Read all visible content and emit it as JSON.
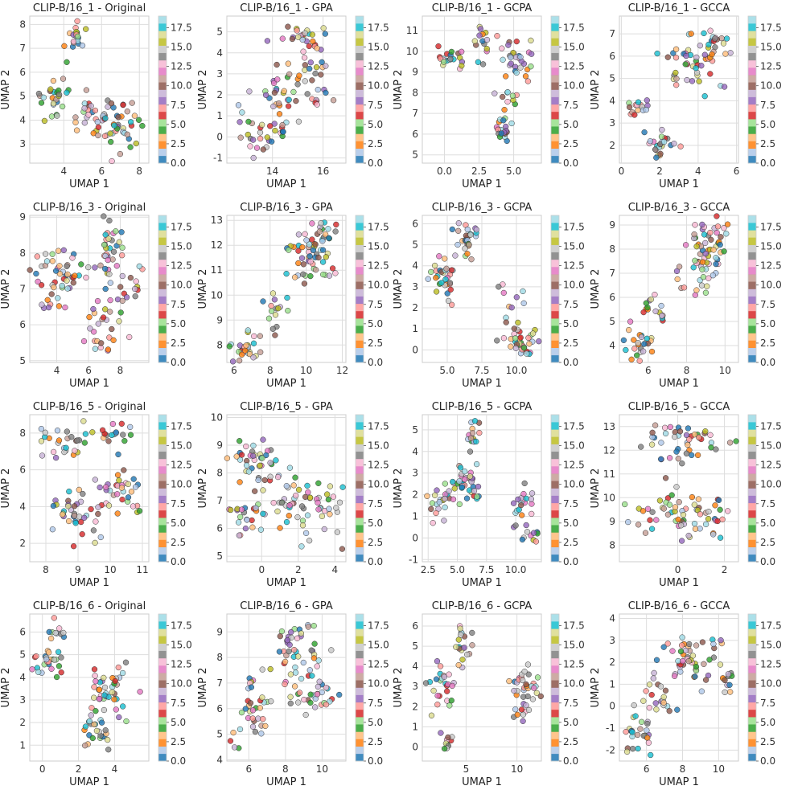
{
  "figure": {
    "colormap_name": "tab20",
    "colormap": [
      "#1f77b4",
      "#aec7e8",
      "#ff7f0e",
      "#ffbb78",
      "#2ca02c",
      "#98df8a",
      "#d62728",
      "#ff9896",
      "#9467bd",
      "#c5b0d5",
      "#8c564b",
      "#c49c94",
      "#e377c2",
      "#f7b6d2",
      "#7f7f7f",
      "#c7c7c7",
      "#bcbd22",
      "#dbdb8d",
      "#17becf",
      "#9edae5"
    ],
    "colorbar_ticks": [
      "0.0",
      "2.5",
      "5.0",
      "7.5",
      "10.0",
      "12.5",
      "15.0",
      "17.5"
    ],
    "colorbar_range": [
      0,
      19
    ]
  },
  "chart_data": [
    {
      "type": "scatter",
      "title": "CLIP-B/16_1 - Original",
      "xlabel": "UMAP 1",
      "ylabel": "UMAP 2",
      "xlim": [
        2.2,
        8.5
      ],
      "ylim": [
        2.2,
        8.35
      ],
      "xticks": [
        "4",
        "6",
        "8"
      ],
      "yticks": [
        "3",
        "4",
        "5",
        "6",
        "7",
        "8"
      ],
      "seed": 11,
      "clusters": [
        {
          "cx": 4.6,
          "cy": 7.5,
          "sx": 0.35,
          "sy": 0.45,
          "n": 20
        },
        {
          "cx": 3.6,
          "cy": 4.8,
          "sx": 0.6,
          "sy": 0.5,
          "n": 25
        },
        {
          "cx": 5.8,
          "cy": 4.3,
          "sx": 0.9,
          "sy": 0.5,
          "n": 35
        },
        {
          "cx": 7.2,
          "cy": 3.6,
          "sx": 0.6,
          "sy": 0.6,
          "n": 30
        }
      ]
    },
    {
      "type": "scatter",
      "title": "CLIP-B/16_1 - GPA",
      "xlabel": "UMAP 1",
      "ylabel": "UMAP 2",
      "xlim": [
        12.2,
        16.9
      ],
      "ylim": [
        -1.25,
        5.75
      ],
      "xticks": [
        "14",
        "16"
      ],
      "yticks": [
        "-1",
        "0",
        "1",
        "2",
        "3",
        "4",
        "5"
      ],
      "seed": 12,
      "clusters": [
        {
          "cx": 15.2,
          "cy": 4.8,
          "sx": 0.6,
          "sy": 0.35,
          "n": 25
        },
        {
          "cx": 14.6,
          "cy": 1.9,
          "sx": 0.8,
          "sy": 0.6,
          "n": 40
        },
        {
          "cx": 13.7,
          "cy": 0.1,
          "sx": 0.7,
          "sy": 0.5,
          "n": 30
        },
        {
          "cx": 15.8,
          "cy": 3.4,
          "sx": 0.5,
          "sy": 0.4,
          "n": 15
        }
      ]
    },
    {
      "type": "scatter",
      "title": "CLIP-B/16_1 - GCPA",
      "xlabel": "UMAP 1",
      "ylabel": "UMAP 2",
      "xlim": [
        -1.6,
        7.0
      ],
      "ylim": [
        4.6,
        11.7
      ],
      "xticks": [
        "0.0",
        "2.5",
        "5.0"
      ],
      "yticks": [
        "5",
        "6",
        "7",
        "8",
        "9",
        "10",
        "11"
      ],
      "seed": 13,
      "clusters": [
        {
          "cx": 0.3,
          "cy": 9.7,
          "sx": 0.6,
          "sy": 0.4,
          "n": 20
        },
        {
          "cx": 2.8,
          "cy": 10.5,
          "sx": 0.6,
          "sy": 0.5,
          "n": 15
        },
        {
          "cx": 5.3,
          "cy": 9.6,
          "sx": 0.9,
          "sy": 0.6,
          "n": 30
        },
        {
          "cx": 4.3,
          "cy": 6.3,
          "sx": 0.3,
          "sy": 0.4,
          "n": 20
        },
        {
          "cx": 4.5,
          "cy": 7.8,
          "sx": 0.6,
          "sy": 0.3,
          "n": 10
        }
      ]
    },
    {
      "type": "scatter",
      "title": "CLIP-B/16_1 - GCCA",
      "xlabel": "UMAP 1",
      "ylabel": "UMAP 2",
      "xlim": [
        -0.1,
        6.1
      ],
      "ylim": [
        1.2,
        7.8
      ],
      "xticks": [
        "0",
        "2",
        "4",
        "6"
      ],
      "yticks": [
        "2",
        "3",
        "4",
        "5",
        "6",
        "7"
      ],
      "seed": 14,
      "clusters": [
        {
          "cx": 1.0,
          "cy": 3.8,
          "sx": 0.5,
          "sy": 0.4,
          "n": 15
        },
        {
          "cx": 2.2,
          "cy": 2.0,
          "sx": 0.5,
          "sy": 0.4,
          "n": 25
        },
        {
          "cx": 3.6,
          "cy": 5.4,
          "sx": 0.9,
          "sy": 0.6,
          "n": 35
        },
        {
          "cx": 4.8,
          "cy": 6.5,
          "sx": 0.6,
          "sy": 0.5,
          "n": 25
        }
      ]
    },
    {
      "type": "scatter",
      "title": "CLIP-B/16_3 - Original",
      "xlabel": "UMAP 1",
      "ylabel": "UMAP 2",
      "xlim": [
        2.3,
        9.8
      ],
      "ylim": [
        4.95,
        9.05
      ],
      "xticks": [
        "4",
        "6",
        "8"
      ],
      "yticks": [
        "5",
        "6",
        "7",
        "8",
        "9"
      ],
      "seed": 21,
      "clusters": [
        {
          "cx": 3.5,
          "cy": 7.3,
          "sx": 0.6,
          "sy": 0.5,
          "n": 30
        },
        {
          "cx": 5.0,
          "cy": 7.4,
          "sx": 0.5,
          "sy": 0.4,
          "n": 20
        },
        {
          "cx": 7.3,
          "cy": 8.1,
          "sx": 0.5,
          "sy": 0.5,
          "n": 30
        },
        {
          "cx": 7.0,
          "cy": 6.2,
          "sx": 0.6,
          "sy": 0.6,
          "n": 30
        },
        {
          "cx": 8.6,
          "cy": 7.2,
          "sx": 0.6,
          "sy": 0.4,
          "n": 15
        }
      ]
    },
    {
      "type": "scatter",
      "title": "CLIP-B/16_3 - GPA",
      "xlabel": "UMAP 1",
      "ylabel": "UMAP 2",
      "xlim": [
        5.6,
        12.2
      ],
      "ylim": [
        7.3,
        13.2
      ],
      "xticks": [
        "6",
        "8",
        "10",
        "12"
      ],
      "yticks": [
        "8",
        "9",
        "10",
        "11",
        "12",
        "13"
      ],
      "seed": 22,
      "clusters": [
        {
          "cx": 6.8,
          "cy": 7.9,
          "sx": 0.6,
          "sy": 0.4,
          "n": 30
        },
        {
          "cx": 8.3,
          "cy": 9.5,
          "sx": 0.5,
          "sy": 0.6,
          "n": 15
        },
        {
          "cx": 10.2,
          "cy": 11.5,
          "sx": 0.8,
          "sy": 0.6,
          "n": 50
        },
        {
          "cx": 10.9,
          "cy": 12.6,
          "sx": 0.6,
          "sy": 0.3,
          "n": 15
        }
      ]
    },
    {
      "type": "scatter",
      "title": "CLIP-B/16_3 - GCPA",
      "xlabel": "UMAP 1",
      "ylabel": "UMAP 2",
      "xlim": [
        3.2,
        11.8
      ],
      "ylim": [
        -0.6,
        6.4
      ],
      "xticks": [
        "5.0",
        "7.5",
        "10.0"
      ],
      "yticks": [
        "0",
        "1",
        "2",
        "3",
        "4",
        "5",
        "6"
      ],
      "seed": 23,
      "clusters": [
        {
          "cx": 4.7,
          "cy": 3.5,
          "sx": 0.6,
          "sy": 0.6,
          "n": 30
        },
        {
          "cx": 6.3,
          "cy": 5.3,
          "sx": 0.7,
          "sy": 0.5,
          "n": 30
        },
        {
          "cx": 10.5,
          "cy": 0.3,
          "sx": 0.6,
          "sy": 0.4,
          "n": 30
        },
        {
          "cx": 9.5,
          "cy": 1.8,
          "sx": 0.6,
          "sy": 0.8,
          "n": 15
        }
      ]
    },
    {
      "type": "scatter",
      "title": "CLIP-B/16_3 - GCCA",
      "xlabel": "UMAP 1",
      "ylabel": "UMAP 2",
      "xlim": [
        4.5,
        10.7
      ],
      "ylim": [
        3.3,
        9.4
      ],
      "xticks": [
        "6",
        "8",
        "10"
      ],
      "yticks": [
        "4",
        "5",
        "6",
        "7",
        "8",
        "9"
      ],
      "seed": 24,
      "clusters": [
        {
          "cx": 5.6,
          "cy": 4.0,
          "sx": 0.5,
          "sy": 0.4,
          "n": 25
        },
        {
          "cx": 6.3,
          "cy": 5.3,
          "sx": 0.5,
          "sy": 0.5,
          "n": 15
        },
        {
          "cx": 8.8,
          "cy": 7.3,
          "sx": 0.8,
          "sy": 0.8,
          "n": 50
        },
        {
          "cx": 9.5,
          "cy": 8.6,
          "sx": 0.6,
          "sy": 0.4,
          "n": 20
        }
      ]
    },
    {
      "type": "scatter",
      "title": "CLIP-B/16_5 - Original",
      "xlabel": "UMAP 1",
      "ylabel": "UMAP 2",
      "xlim": [
        7.5,
        11.2
      ],
      "ylim": [
        1.0,
        9.0
      ],
      "xticks": [
        "8",
        "9",
        "10",
        "11"
      ],
      "yticks": [
        "2",
        "4",
        "6",
        "8"
      ],
      "seed": 31,
      "clusters": [
        {
          "cx": 8.5,
          "cy": 7.6,
          "sx": 0.4,
          "sy": 0.6,
          "n": 25
        },
        {
          "cx": 9.9,
          "cy": 7.8,
          "sx": 0.4,
          "sy": 0.5,
          "n": 20
        },
        {
          "cx": 9.0,
          "cy": 3.5,
          "sx": 0.6,
          "sy": 0.9,
          "n": 40
        },
        {
          "cx": 10.3,
          "cy": 4.8,
          "sx": 0.4,
          "sy": 0.8,
          "n": 30
        }
      ]
    },
    {
      "type": "scatter",
      "title": "CLIP-B/16_5 - GPA",
      "xlabel": "UMAP 1",
      "ylabel": "UMAP 2",
      "xlim": [
        -1.9,
        4.6
      ],
      "ylim": [
        4.8,
        10.1
      ],
      "xticks": [
        "0",
        "2",
        "4"
      ],
      "yticks": [
        "5",
        "6",
        "7",
        "8",
        "9",
        "10"
      ],
      "seed": 32,
      "clusters": [
        {
          "cx": 0.0,
          "cy": 8.4,
          "sx": 0.8,
          "sy": 0.6,
          "n": 40
        },
        {
          "cx": -0.6,
          "cy": 6.6,
          "sx": 0.7,
          "sy": 0.5,
          "n": 25
        },
        {
          "cx": 1.8,
          "cy": 7.1,
          "sx": 0.8,
          "sy": 0.7,
          "n": 35
        },
        {
          "cx": 3.6,
          "cy": 6.6,
          "sx": 0.6,
          "sy": 0.7,
          "n": 25
        }
      ]
    },
    {
      "type": "scatter",
      "title": "CLIP-B/16_5 - GCPA",
      "xlabel": "UMAP 1",
      "ylabel": "UMAP 2",
      "xlim": [
        2.0,
        12.2
      ],
      "ylim": [
        -1.1,
        5.7
      ],
      "xticks": [
        "2.5",
        "5.0",
        "7.5",
        "10.0"
      ],
      "yticks": [
        "-1",
        "0",
        "1",
        "2",
        "3",
        "4",
        "5"
      ],
      "seed": 33,
      "clusters": [
        {
          "cx": 3.3,
          "cy": 1.6,
          "sx": 0.5,
          "sy": 0.5,
          "n": 20
        },
        {
          "cx": 5.6,
          "cy": 2.6,
          "sx": 0.8,
          "sy": 0.6,
          "n": 40
        },
        {
          "cx": 6.2,
          "cy": 4.7,
          "sx": 0.5,
          "sy": 0.5,
          "n": 15
        },
        {
          "cx": 10.5,
          "cy": 1.4,
          "sx": 0.6,
          "sy": 0.6,
          "n": 20
        },
        {
          "cx": 11.2,
          "cy": 0.0,
          "sx": 0.4,
          "sy": 0.5,
          "n": 10
        }
      ]
    },
    {
      "type": "scatter",
      "title": "CLIP-B/16_5 - GCCA",
      "xlabel": "UMAP 1",
      "ylabel": "UMAP 2",
      "xlim": [
        -2.5,
        2.6
      ],
      "ylim": [
        7.3,
        13.5
      ],
      "xticks": [
        "0",
        "2"
      ],
      "yticks": [
        "8",
        "9",
        "10",
        "11",
        "12",
        "13"
      ],
      "seed": 34,
      "clusters": [
        {
          "cx": -0.3,
          "cy": 12.4,
          "sx": 0.7,
          "sy": 0.5,
          "n": 30
        },
        {
          "cx": 1.3,
          "cy": 12.3,
          "sx": 0.5,
          "sy": 0.5,
          "n": 15
        },
        {
          "cx": -0.6,
          "cy": 9.4,
          "sx": 0.9,
          "sy": 0.6,
          "n": 40
        },
        {
          "cx": 1.2,
          "cy": 9.1,
          "sx": 0.6,
          "sy": 0.5,
          "n": 25
        }
      ]
    },
    {
      "type": "scatter",
      "title": "CLIP-B/16_6 - Original",
      "xlabel": "UMAP 1",
      "ylabel": "UMAP 2",
      "xlim": [
        -0.7,
        5.9
      ],
      "ylim": [
        0.3,
        6.8
      ],
      "xticks": [
        "0",
        "2",
        "4"
      ],
      "yticks": [
        "1",
        "2",
        "3",
        "4",
        "5",
        "6"
      ],
      "seed": 41,
      "clusters": [
        {
          "cx": 0.4,
          "cy": 4.6,
          "sx": 0.5,
          "sy": 0.4,
          "n": 25
        },
        {
          "cx": 0.9,
          "cy": 6.0,
          "sx": 0.3,
          "sy": 0.4,
          "n": 10
        },
        {
          "cx": 3.8,
          "cy": 3.4,
          "sx": 0.9,
          "sy": 0.6,
          "n": 40
        },
        {
          "cx": 3.1,
          "cy": 1.6,
          "sx": 0.6,
          "sy": 0.5,
          "n": 25
        }
      ]
    },
    {
      "type": "scatter",
      "title": "CLIP-B/16_6 - GPA",
      "xlabel": "UMAP 1",
      "ylabel": "UMAP 2",
      "xlim": [
        4.8,
        11.3
      ],
      "ylim": [
        3.95,
        9.7
      ],
      "xticks": [
        "6",
        "8",
        "10"
      ],
      "yticks": [
        "4",
        "5",
        "6",
        "7",
        "8",
        "9"
      ],
      "seed": 42,
      "clusters": [
        {
          "cx": 8.6,
          "cy": 8.1,
          "sx": 1.0,
          "sy": 0.7,
          "n": 45
        },
        {
          "cx": 6.3,
          "cy": 6.2,
          "sx": 0.7,
          "sy": 0.6,
          "n": 30
        },
        {
          "cx": 9.2,
          "cy": 6.6,
          "sx": 0.9,
          "sy": 0.5,
          "n": 30
        },
        {
          "cx": 5.1,
          "cy": 4.7,
          "sx": 0.2,
          "sy": 0.3,
          "n": 5
        }
      ]
    },
    {
      "type": "scatter",
      "title": "CLIP-B/16_6 - GCPA",
      "xlabel": "UMAP 1",
      "ylabel": "UMAP 2",
      "xlim": [
        0.7,
        12.4
      ],
      "ylim": [
        -0.7,
        6.6
      ],
      "xticks": [
        "5",
        "10"
      ],
      "yticks": [
        "0",
        "1",
        "2",
        "3",
        "4",
        "5",
        "6"
      ],
      "seed": 43,
      "clusters": [
        {
          "cx": 4.6,
          "cy": 5.2,
          "sx": 0.5,
          "sy": 0.7,
          "n": 20
        },
        {
          "cx": 2.6,
          "cy": 3.1,
          "sx": 0.8,
          "sy": 0.7,
          "n": 25
        },
        {
          "cx": 3.0,
          "cy": 0.4,
          "sx": 0.4,
          "sy": 0.5,
          "n": 10
        },
        {
          "cx": 10.7,
          "cy": 3.2,
          "sx": 0.8,
          "sy": 0.5,
          "n": 30
        },
        {
          "cx": 10.4,
          "cy": 1.6,
          "sx": 0.5,
          "sy": 0.3,
          "n": 10
        }
      ]
    },
    {
      "type": "scatter",
      "title": "CLIP-B/16_6 - GCCA",
      "xlabel": "UMAP 1",
      "ylabel": "UMAP 2",
      "xlim": [
        4.5,
        11.1
      ],
      "ylim": [
        -2.5,
        4.2
      ],
      "xticks": [
        "6",
        "8",
        "10"
      ],
      "yticks": [
        "-2",
        "-1",
        "0",
        "1",
        "2",
        "3",
        "4"
      ],
      "seed": 44,
      "clusters": [
        {
          "cx": 5.4,
          "cy": -1.2,
          "sx": 0.5,
          "sy": 0.6,
          "n": 25
        },
        {
          "cx": 6.6,
          "cy": 0.4,
          "sx": 0.6,
          "sy": 0.6,
          "n": 20
        },
        {
          "cx": 8.6,
          "cy": 2.0,
          "sx": 1.0,
          "sy": 0.7,
          "n": 50
        },
        {
          "cx": 10.6,
          "cy": 1.1,
          "sx": 0.3,
          "sy": 0.3,
          "n": 10
        }
      ]
    }
  ]
}
